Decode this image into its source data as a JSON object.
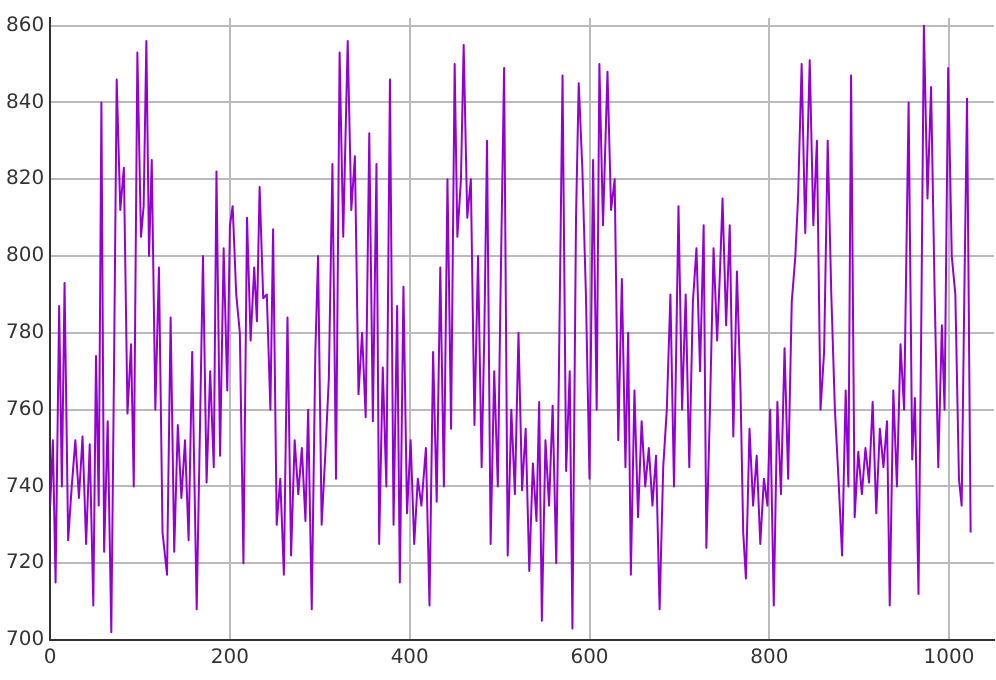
{
  "chart_data": {
    "type": "line",
    "xlim": [
      0,
      1050
    ],
    "xticks": [
      0,
      200,
      400,
      600,
      800,
      1000
    ],
    "ylim": [
      700,
      862
    ],
    "yticks": [
      700,
      720,
      740,
      760,
      780,
      800,
      820,
      840,
      860
    ],
    "grid": true,
    "legend": false,
    "marker": "none",
    "line_style": "solid",
    "series": [
      {
        "color": "#9400d3",
        "x": [
          0,
          3,
          6,
          10,
          13,
          16,
          20,
          24,
          28,
          32,
          36,
          40,
          44,
          48,
          51,
          54,
          57,
          60,
          64,
          68,
          71,
          74,
          78,
          82,
          86,
          90,
          93,
          97,
          101,
          104,
          107,
          110,
          113,
          117,
          121,
          125,
          130,
          134,
          138,
          142,
          146,
          150,
          154,
          158,
          163,
          167,
          170,
          174,
          178,
          182,
          185,
          189,
          193,
          197,
          200,
          203,
          207,
          211,
          215,
          219,
          223,
          227,
          230,
          233,
          237,
          241,
          245,
          248,
          252,
          256,
          260,
          264,
          268,
          272,
          276,
          280,
          284,
          287,
          291,
          295,
          298,
          302,
          306,
          310,
          314,
          318,
          322,
          326,
          331,
          335,
          339,
          343,
          347,
          351,
          355,
          359,
          363,
          366,
          370,
          374,
          378,
          382,
          386,
          389,
          393,
          397,
          401,
          405,
          409,
          413,
          418,
          422,
          426,
          430,
          434,
          438,
          442,
          446,
          450,
          453,
          457,
          460,
          464,
          468,
          472,
          476,
          480,
          483,
          486,
          490,
          494,
          498,
          501,
          505,
          509,
          513,
          517,
          521,
          525,
          529,
          533,
          537,
          541,
          544,
          547,
          551,
          555,
          559,
          563,
          566,
          570,
          574,
          578,
          581,
          585,
          588,
          592,
          596,
          600,
          604,
          608,
          611,
          615,
          620,
          624,
          628,
          632,
          636,
          640,
          643,
          646,
          650,
          654,
          658,
          662,
          666,
          670,
          674,
          678,
          682,
          686,
          690,
          694,
          699,
          703,
          707,
          711,
          715,
          719,
          723,
          727,
          730,
          734,
          738,
          742,
          745,
          748,
          752,
          756,
          760,
          764,
          768,
          771,
          774,
          778,
          782,
          786,
          790,
          794,
          798,
          801,
          805,
          809,
          813,
          817,
          821,
          825,
          829,
          832,
          836,
          840,
          845,
          849,
          853,
          857,
          861,
          865,
          869,
          873,
          877,
          881,
          885,
          888,
          891,
          895,
          899,
          903,
          907,
          911,
          915,
          919,
          923,
          927,
          931,
          934,
          938,
          942,
          946,
          950,
          955,
          959,
          962,
          966,
          969,
          972,
          976,
          980,
          984,
          988,
          992,
          995,
          999,
          1003,
          1007,
          1011,
          1014,
          1017,
          1020,
          1024
        ],
        "values": [
          735,
          752,
          715,
          787,
          740,
          793,
          726,
          740,
          752,
          737,
          753,
          725,
          751,
          709,
          774,
          735,
          840,
          723,
          757,
          702,
          770,
          846,
          812,
          823,
          759,
          777,
          740,
          853,
          805,
          813,
          856,
          800,
          825,
          760,
          797,
          728,
          717,
          784,
          723,
          756,
          737,
          752,
          726,
          775,
          708,
          760,
          800,
          741,
          770,
          745,
          822,
          748,
          802,
          765,
          808,
          813,
          790,
          780,
          720,
          810,
          778,
          797,
          783,
          818,
          789,
          790,
          760,
          807,
          730,
          742,
          717,
          784,
          722,
          752,
          738,
          750,
          731,
          760,
          708,
          775,
          800,
          730,
          748,
          768,
          824,
          742,
          853,
          805,
          856,
          812,
          826,
          764,
          780,
          758,
          832,
          757,
          824,
          725,
          771,
          740,
          846,
          730,
          787,
          715,
          792,
          733,
          752,
          725,
          742,
          735,
          750,
          709,
          775,
          736,
          797,
          740,
          820,
          755,
          850,
          805,
          820,
          855,
          810,
          820,
          756,
          800,
          745,
          780,
          830,
          725,
          770,
          740,
          790,
          849,
          722,
          760,
          738,
          780,
          739,
          755,
          718,
          746,
          731,
          762,
          705,
          752,
          735,
          761,
          720,
          770,
          847,
          744,
          770,
          703,
          810,
          845,
          823,
          790,
          742,
          825,
          760,
          850,
          808,
          848,
          812,
          820,
          752,
          794,
          745,
          780,
          717,
          765,
          732,
          757,
          740,
          750,
          735,
          748,
          708,
          745,
          760,
          790,
          740,
          813,
          760,
          790,
          745,
          788,
          802,
          770,
          808,
          724,
          760,
          802,
          778,
          795,
          815,
          782,
          808,
          753,
          796,
          765,
          728,
          716,
          755,
          735,
          748,
          725,
          742,
          735,
          760,
          709,
          762,
          738,
          776,
          742,
          788,
          800,
          815,
          850,
          806,
          851,
          808,
          830,
          760,
          775,
          830,
          790,
          760,
          742,
          722,
          765,
          740,
          847,
          732,
          749,
          738,
          750,
          741,
          762,
          733,
          755,
          745,
          757,
          709,
          765,
          740,
          777,
          760,
          840,
          747,
          763,
          712,
          780,
          860,
          815,
          844,
          790,
          745,
          782,
          760,
          849,
          800,
          790,
          742,
          735,
          790,
          841,
          728
        ]
      }
    ]
  }
}
